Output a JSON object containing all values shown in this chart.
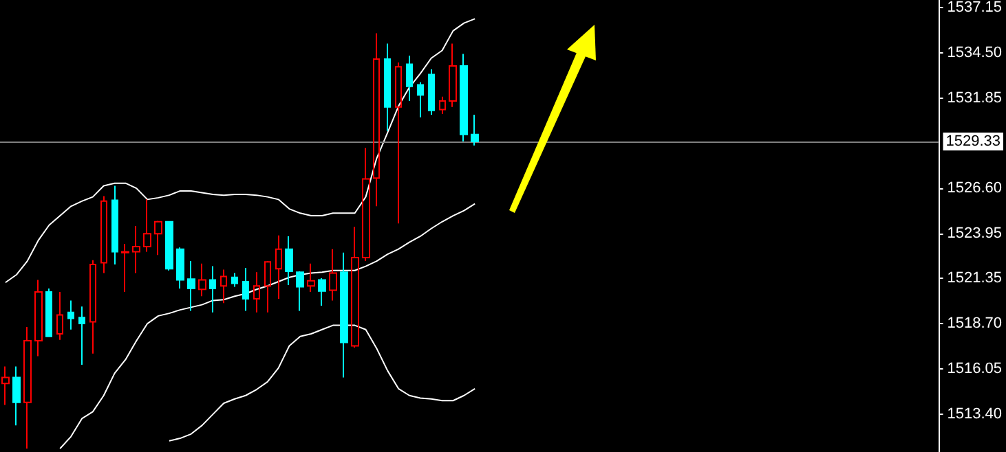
{
  "chart_data": {
    "type": "candlestick",
    "categories": [
      null,
      null,
      null,
      null,
      null,
      null,
      null,
      null,
      null,
      null,
      null,
      null,
      null,
      null,
      null,
      null,
      null,
      null,
      null,
      null,
      null,
      null,
      null,
      null,
      null,
      null,
      null,
      null,
      null,
      null,
      null,
      null,
      null,
      null,
      null,
      null,
      null,
      null,
      null,
      null,
      null,
      null,
      null,
      null,
      null,
      null,
      null,
      null,
      null,
      null,
      null,
      null,
      null,
      null,
      null,
      null,
      null,
      null,
      null,
      null,
      null,
      null,
      null,
      null,
      null,
      null,
      null,
      null,
      null,
      null,
      null,
      null,
      null,
      null,
      null,
      null,
      null,
      null,
      null,
      null,
      null,
      null,
      null,
      null,
      null,
      null
    ],
    "ohlc": [
      [
        1515.2,
        1516.2,
        1513.95,
        1515.55
      ],
      [
        1515.55,
        1516.2,
        1512.75,
        1514.1
      ],
      [
        1514.1,
        1518.5,
        1511.4,
        1517.7
      ],
      [
        1517.7,
        1521.25,
        1516.8,
        1520.55
      ],
      [
        1520.55,
        1520.75,
        1517.95,
        1517.95
      ],
      [
        1518.1,
        1520.55,
        1517.75,
        1519.2
      ],
      [
        1519.35,
        1520.05,
        1518.35,
        1519.0
      ],
      [
        1519.05,
        1519.7,
        1516.3,
        1518.7
      ],
      [
        1518.8,
        1522.4,
        1516.95,
        1522.15
      ],
      [
        1522.25,
        1526.15,
        1521.65,
        1525.85
      ],
      [
        1525.9,
        1526.75,
        1522.15,
        1522.9
      ],
      [
        1522.85,
        1523.35,
        1520.55,
        1522.9
      ],
      [
        1522.9,
        1524.4,
        1521.65,
        1523.2
      ],
      [
        1523.2,
        1525.95,
        1522.9,
        1523.95
      ],
      [
        1523.95,
        1524.7,
        1522.7,
        1524.65
      ],
      [
        1524.65,
        1524.65,
        1521.8,
        1521.9
      ],
      [
        1523.05,
        1523.15,
        1520.75,
        1521.25
      ],
      [
        1521.3,
        1522.35,
        1519.45,
        1520.75
      ],
      [
        1520.7,
        1522.2,
        1520.3,
        1521.25
      ],
      [
        1521.25,
        1522.05,
        1519.35,
        1520.75
      ],
      [
        1520.9,
        1521.85,
        1519.9,
        1521.45
      ],
      [
        1521.4,
        1521.65,
        1520.85,
        1521.05
      ],
      [
        1521.15,
        1521.95,
        1519.45,
        1520.15
      ],
      [
        1520.15,
        1521.7,
        1519.35,
        1520.9
      ],
      [
        1520.9,
        1522.35,
        1519.35,
        1522.3
      ],
      [
        1521.9,
        1523.85,
        1520.15,
        1523.05
      ],
      [
        1523.05,
        1523.8,
        1520.95,
        1521.75
      ],
      [
        1521.7,
        1521.75,
        1519.45,
        1520.85
      ],
      [
        1520.9,
        1522.2,
        1520.55,
        1521.2
      ],
      [
        1521.25,
        1521.35,
        1519.75,
        1520.6
      ],
      [
        1520.65,
        1523.05,
        1520.05,
        1521.65
      ],
      [
        1521.7,
        1522.85,
        1515.55,
        1517.6
      ],
      [
        1517.4,
        1524.35,
        1517.3,
        1522.55
      ],
      [
        1522.55,
        1528.95,
        1522.35,
        1527.15
      ],
      [
        1527.2,
        1535.65,
        1525.55,
        1534.15
      ],
      [
        1534.15,
        1535.05,
        1529.95,
        1531.35
      ],
      [
        1531.35,
        1533.95,
        1524.55,
        1533.7
      ],
      [
        1533.85,
        1534.35,
        1531.7,
        1532.55
      ],
      [
        1532.65,
        1532.8,
        1530.75,
        1532.05
      ],
      [
        1533.25,
        1533.55,
        1530.9,
        1531.15
      ],
      [
        1531.2,
        1531.95,
        1530.95,
        1531.7
      ],
      [
        1531.7,
        1535.05,
        1531.35,
        1533.75
      ],
      [
        1533.75,
        1534.45,
        1529.35,
        1529.75
      ],
      [
        1529.75,
        1530.9,
        1529.1,
        1529.33
      ],
      null,
      null,
      null,
      null,
      null,
      null,
      null,
      null,
      null,
      null,
      null,
      null,
      null,
      null,
      null,
      null,
      null,
      null,
      null,
      null,
      null,
      null,
      null,
      null,
      null,
      null,
      null,
      null,
      null,
      null,
      null,
      null,
      null,
      null,
      null,
      null,
      null,
      null,
      null,
      null,
      null,
      null
    ],
    "colors": [
      "#ff0000",
      "#00ffff",
      "#ff0000",
      "#ff0000",
      "#00ffff",
      "#ff0000",
      "#00ffff",
      "#00ffff",
      "#ff0000",
      "#ff0000",
      "#00ffff",
      "#ff0000",
      "#ff0000",
      "#ff0000",
      "#ff0000",
      "#00ffff",
      "#00ffff",
      "#00ffff",
      "#ff0000",
      "#00ffff",
      "#ff0000",
      "#00ffff",
      "#00ffff",
      "#ff0000",
      "#ff0000",
      "#ff0000",
      "#00ffff",
      "#00ffff",
      "#ff0000",
      "#00ffff",
      "#ff0000",
      "#00ffff",
      "#ff0000",
      "#ff0000",
      "#ff0000",
      "#00ffff",
      "#ff0000",
      "#00ffff",
      "#00ffff",
      "#00ffff",
      "#ff0000",
      "#ff0000",
      "#00ffff",
      "#00ffff",
      null,
      null,
      null,
      null,
      null,
      null,
      null,
      null,
      null,
      null,
      null,
      null,
      null,
      null,
      null,
      null,
      null,
      null,
      null,
      null,
      null,
      null,
      null,
      null,
      null,
      null,
      null,
      null,
      null,
      null,
      null,
      null,
      null,
      null,
      null,
      null,
      null,
      null,
      null,
      null,
      null,
      null
    ],
    "series": [
      {
        "type": "line",
        "color": "#ffffff",
        "values": [
          1521.1,
          1521.55,
          1522.35,
          1523.55,
          1524.45,
          1525.0,
          1525.55,
          1525.85,
          1526.1,
          1526.75,
          1526.9,
          1526.9,
          1526.6,
          1525.95,
          1526.05,
          1526.2,
          1526.45,
          1526.45,
          1526.35,
          1526.25,
          1526.2,
          1526.25,
          1526.25,
          1526.2,
          1526.1,
          1525.95,
          1525.4,
          1525.15,
          1525.0,
          1525.0,
          1525.15,
          1525.15,
          1525.15,
          1526.1,
          1528.35,
          1529.85,
          1531.4,
          1532.5,
          1533.3,
          1534.2,
          1534.65,
          1535.8,
          1536.25,
          1536.5,
          null,
          null,
          null,
          null,
          null,
          null,
          null,
          null,
          null,
          null,
          null,
          null,
          null,
          null,
          null,
          null,
          null,
          null,
          null,
          null,
          null,
          null,
          null,
          null,
          null,
          null,
          null,
          null,
          null,
          null,
          null,
          null,
          null,
          null,
          null,
          null,
          null,
          null,
          null,
          null,
          null,
          null
        ]
      },
      {
        "type": "line",
        "color": "#ffffff",
        "values": [
          null,
          null,
          null,
          null,
          null,
          1511.4,
          1512.1,
          1513.15,
          1513.55,
          1514.5,
          1515.8,
          1516.6,
          1517.7,
          1518.7,
          1519.15,
          1519.3,
          1519.5,
          1519.65,
          1519.8,
          1520.05,
          1520.1,
          1520.3,
          1520.45,
          1520.7,
          1520.9,
          1521.15,
          1521.4,
          1521.55,
          1521.65,
          1521.7,
          1521.8,
          1521.8,
          1521.8,
          1522.05,
          1522.35,
          1522.75,
          1523.05,
          1523.45,
          1523.8,
          1524.25,
          1524.65,
          1525.0,
          1525.3,
          1525.7,
          null,
          null,
          null,
          null,
          null,
          null,
          null,
          null,
          null,
          null,
          null,
          null,
          null,
          null,
          null,
          null,
          null,
          null,
          null,
          null,
          null,
          null,
          null,
          null,
          null,
          null,
          null,
          null,
          null,
          null,
          null,
          null,
          null,
          null,
          null,
          null,
          null,
          null,
          null,
          null,
          null,
          null
        ]
      },
      {
        "type": "line",
        "color": "#ffffff",
        "values": [
          null,
          null,
          null,
          null,
          null,
          null,
          null,
          null,
          null,
          null,
          null,
          null,
          null,
          null,
          null,
          1511.85,
          1512.0,
          1512.25,
          1512.75,
          1513.4,
          1514.05,
          1514.3,
          1514.5,
          1514.85,
          1515.3,
          1516.1,
          1517.4,
          1517.95,
          1518.1,
          1518.35,
          1518.6,
          1518.6,
          1518.6,
          1518.35,
          1517.25,
          1515.95,
          1514.9,
          1514.5,
          1514.35,
          1514.3,
          1514.2,
          1514.2,
          1514.5,
          1514.9,
          null,
          null,
          null,
          null,
          null,
          null,
          null,
          null,
          null,
          null,
          null,
          null,
          null,
          null,
          null,
          null,
          null,
          null,
          null,
          null,
          null,
          null,
          null,
          null,
          null,
          null,
          null,
          null,
          null,
          null,
          null,
          null,
          null,
          null,
          null,
          null,
          null,
          null,
          null,
          null,
          null,
          null
        ]
      }
    ],
    "ylim": [
      1511.2,
      1537.6
    ],
    "yticks": [
      {
        "value": 1513.4,
        "label": "1513.40"
      },
      1516.05,
      {
        "value": 1518.7,
        "label": "1518.70"
      },
      1521.35,
      1523.95,
      {
        "value": 1526.6,
        "label": "1526.60"
      },
      1531.85,
      {
        "value": 1534.5,
        "label": "1534.50"
      },
      1537.15
    ],
    "ref_lines": [
      {
        "axis": "y",
        "value": 1529.33,
        "label": "1529.33",
        "color": "#808080"
      }
    ],
    "tick_labels": "y",
    "grid": false
  }
}
